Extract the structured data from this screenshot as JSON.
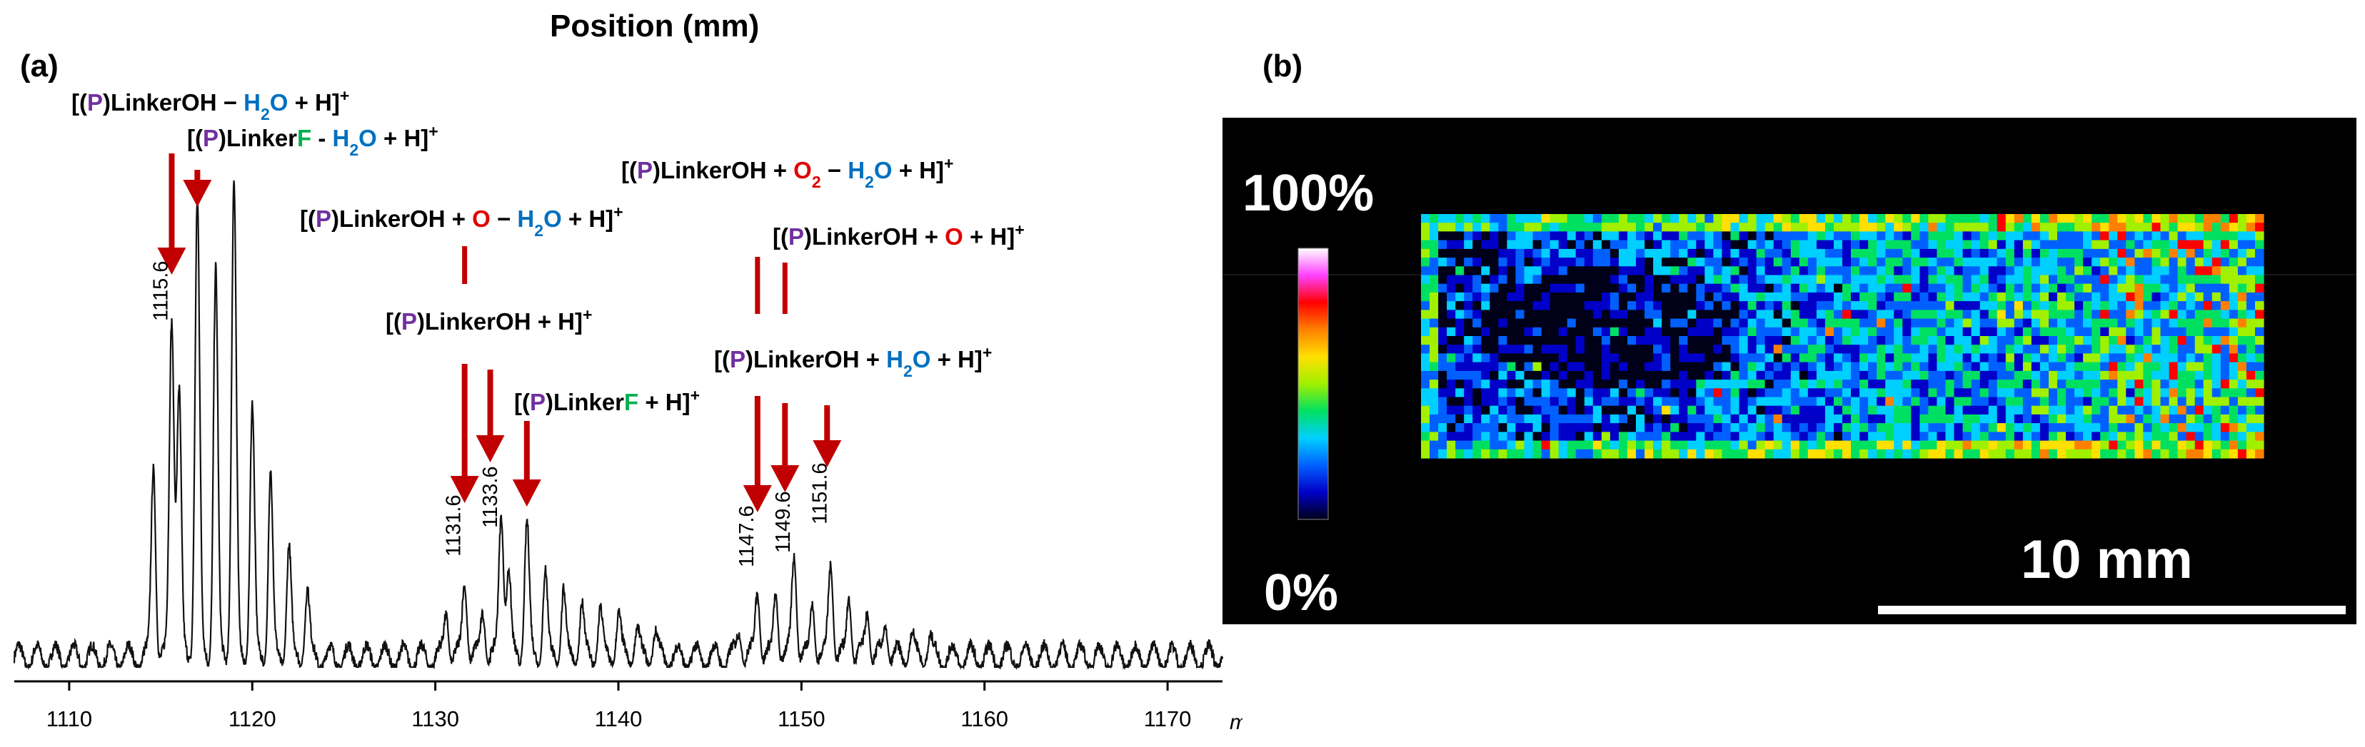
{
  "header_title": "Position (mm)",
  "panel_a_label": "(a)",
  "panel_b_label": "(b)",
  "colors": {
    "arrow": "#c00000",
    "purple": "#7030a0",
    "blue": "#0070c0",
    "green": "#00b050",
    "red": "#e00000",
    "black": "#000000"
  },
  "chart_data": [
    {
      "type": "line",
      "xlabel": "m/z",
      "xlim": [
        1107,
        1173
      ],
      "xticks": [
        1110,
        1120,
        1130,
        1140,
        1150,
        1160,
        1170
      ],
      "xtick_labels": [
        "1110",
        "1120",
        "1130",
        "1140",
        "1150",
        "1160",
        "1170"
      ],
      "peaks": [
        {
          "mz": 1115.6,
          "label": "1115.6",
          "height": 0.7
        },
        {
          "mz": 1117.0,
          "label": "",
          "height": 0.94
        },
        {
          "mz": 1119.0,
          "label": "",
          "height": 0.98
        },
        {
          "mz": 1131.6,
          "label": "1131.6",
          "height": 0.16
        },
        {
          "mz": 1133.6,
          "label": "1133.6",
          "height": 0.3
        },
        {
          "mz": 1135.0,
          "label": "",
          "height": 0.28
        },
        {
          "mz": 1147.6,
          "label": "1147.6",
          "height": 0.14
        },
        {
          "mz": 1149.6,
          "label": "1149.6",
          "height": 0.22
        },
        {
          "mz": 1151.6,
          "label": "1151.6",
          "height": 0.2
        }
      ],
      "annotations": [
        {
          "id": "ann1",
          "parts": [
            [
              "[(",
              "black"
            ],
            [
              "P",
              "purple"
            ],
            [
              ")LinkerOH − ",
              "black"
            ],
            [
              "H",
              "blue"
            ],
            [
              "2",
              "blue",
              "sub"
            ],
            [
              "O",
              "blue"
            ],
            [
              " + H]",
              "black"
            ],
            [
              "+",
              "black",
              "sup"
            ]
          ]
        },
        {
          "id": "ann2",
          "parts": [
            [
              "[(",
              "black"
            ],
            [
              "P",
              "purple"
            ],
            [
              ")Linker",
              "black"
            ],
            [
              "F",
              "green"
            ],
            [
              " - ",
              "black"
            ],
            [
              "H",
              "blue"
            ],
            [
              "2",
              "blue",
              "sub"
            ],
            [
              "O",
              "blue"
            ],
            [
              " + H]",
              "black"
            ],
            [
              "+",
              "black",
              "sup"
            ]
          ]
        },
        {
          "id": "ann3",
          "parts": [
            [
              "[(",
              "black"
            ],
            [
              "P",
              "purple"
            ],
            [
              ")LinkerOH + ",
              "black"
            ],
            [
              "O",
              "red"
            ],
            [
              " − ",
              "black"
            ],
            [
              "H",
              "blue"
            ],
            [
              "2",
              "blue",
              "sub"
            ],
            [
              "O",
              "blue"
            ],
            [
              " + H]",
              "black"
            ],
            [
              "+",
              "black",
              "sup"
            ]
          ]
        },
        {
          "id": "ann4",
          "parts": [
            [
              "[(",
              "black"
            ],
            [
              "P",
              "purple"
            ],
            [
              ")LinkerOH + H]",
              "black"
            ],
            [
              "+",
              "black",
              "sup"
            ]
          ]
        },
        {
          "id": "ann5",
          "parts": [
            [
              "[(",
              "black"
            ],
            [
              "P",
              "purple"
            ],
            [
              ")Linker",
              "black"
            ],
            [
              "F",
              "green"
            ],
            [
              " + H]",
              "black"
            ],
            [
              "+",
              "black",
              "sup"
            ]
          ]
        },
        {
          "id": "ann6",
          "parts": [
            [
              "[(",
              "black"
            ],
            [
              "P",
              "purple"
            ],
            [
              ")LinkerOH + ",
              "black"
            ],
            [
              "O",
              "red"
            ],
            [
              "2",
              "red",
              "sub"
            ],
            [
              " − ",
              "black"
            ],
            [
              "H",
              "blue"
            ],
            [
              "2",
              "blue",
              "sub"
            ],
            [
              "O",
              "blue"
            ],
            [
              " + H]",
              "black"
            ],
            [
              "+",
              "black",
              "sup"
            ]
          ]
        },
        {
          "id": "ann7",
          "parts": [
            [
              "[(",
              "black"
            ],
            [
              "P",
              "purple"
            ],
            [
              ")LinkerOH + ",
              "black"
            ],
            [
              "O",
              "red"
            ],
            [
              " + H]",
              "black"
            ],
            [
              "+",
              "black",
              "sup"
            ]
          ]
        },
        {
          "id": "ann8",
          "parts": [
            [
              "[(",
              "black"
            ],
            [
              "P",
              "purple"
            ],
            [
              ")LinkerOH + ",
              "black"
            ],
            [
              "H",
              "blue"
            ],
            [
              "2",
              "blue",
              "sub"
            ],
            [
              "O",
              "blue"
            ],
            [
              " + H]",
              "black"
            ],
            [
              "+",
              "black",
              "sup"
            ]
          ]
        }
      ]
    },
    {
      "type": "heatmap",
      "colorbar_max_label": "100%",
      "colorbar_min_label": "0%",
      "scalebar_label": "10 mm",
      "scalebar_length_mm": 10,
      "grid": {
        "rows": 28,
        "cols": 98
      },
      "colormap": [
        "#000018",
        "#0000c8",
        "#0060ff",
        "#00d0ff",
        "#00e060",
        "#a0f000",
        "#ffe000",
        "#ff8000",
        "#ff0000",
        "#ff40ff",
        "#ffffff"
      ],
      "trend": "intensity low (blue/black) on left increasing to mixed green/red on right"
    }
  ]
}
